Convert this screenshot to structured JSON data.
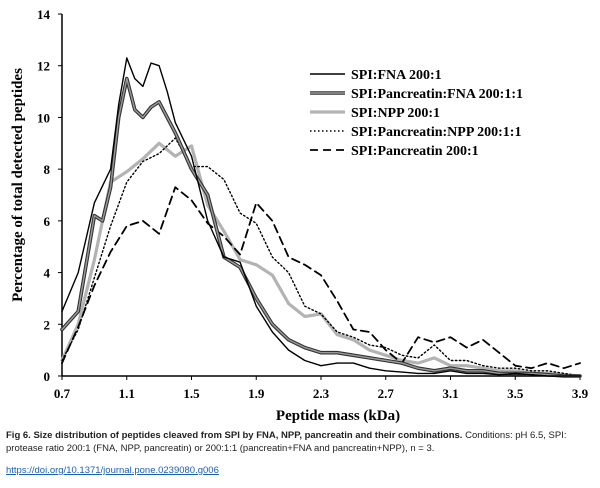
{
  "chart_data": {
    "type": "line",
    "title": "",
    "xlabel": "Peptide mass (kDa)",
    "ylabel": "Percentage of total detected peptides",
    "xlim": [
      0.7,
      3.9
    ],
    "ylim": [
      0,
      14
    ],
    "x_ticks": [
      "0.7",
      "1.1",
      "1.5",
      "1.9",
      "2.3",
      "2.7",
      "3.1",
      "3.5",
      "3.9"
    ],
    "y_ticks": [
      "0",
      "2",
      "4",
      "6",
      "8",
      "10",
      "12",
      "14"
    ],
    "legend_position": "top-right",
    "series": [
      {
        "name": "SPI:FNA 200:1",
        "style": "solid-black",
        "x": [
          0.7,
          0.8,
          0.9,
          1.0,
          1.05,
          1.1,
          1.15,
          1.2,
          1.25,
          1.3,
          1.35,
          1.4,
          1.5,
          1.6,
          1.7,
          1.8,
          1.9,
          2.0,
          2.1,
          2.2,
          2.3,
          2.4,
          2.5,
          2.6,
          2.7,
          2.8,
          2.9,
          3.0,
          3.1,
          3.2,
          3.3,
          3.4,
          3.5,
          3.6,
          3.7,
          3.8,
          3.9
        ],
        "y": [
          2.5,
          4.0,
          6.7,
          8.0,
          10.5,
          12.3,
          11.5,
          11.2,
          12.1,
          12.0,
          11.0,
          9.8,
          8.5,
          6.0,
          4.6,
          4.4,
          2.7,
          1.7,
          1.0,
          0.6,
          0.4,
          0.5,
          0.5,
          0.3,
          0.2,
          0.15,
          0.1,
          0.1,
          0.2,
          0.1,
          0.1,
          0.05,
          0.1,
          0.05,
          0.0,
          0.0,
          0.0
        ]
      },
      {
        "name": "SPI:Pancreatin:FNA 200:1:1",
        "style": "double-gray",
        "x": [
          0.7,
          0.8,
          0.9,
          0.95,
          1.0,
          1.05,
          1.1,
          1.15,
          1.2,
          1.25,
          1.3,
          1.35,
          1.4,
          1.5,
          1.6,
          1.7,
          1.8,
          1.9,
          2.0,
          2.1,
          2.2,
          2.3,
          2.4,
          2.5,
          2.6,
          2.7,
          2.8,
          2.9,
          3.0,
          3.1,
          3.2,
          3.3,
          3.4,
          3.5,
          3.6,
          3.7,
          3.8,
          3.9
        ],
        "y": [
          1.8,
          2.5,
          6.2,
          6.0,
          7.3,
          10.0,
          11.5,
          10.3,
          10.0,
          10.4,
          10.6,
          10.0,
          9.4,
          8.0,
          7.0,
          4.6,
          4.2,
          3.0,
          2.0,
          1.4,
          1.1,
          0.9,
          0.9,
          0.8,
          0.7,
          0.6,
          0.5,
          0.3,
          0.2,
          0.3,
          0.2,
          0.2,
          0.1,
          0.1,
          0.1,
          0.05,
          0.0,
          0.0
        ]
      },
      {
        "name": "SPI:NPP 200:1",
        "style": "solid-lightgray",
        "x": [
          0.7,
          0.8,
          0.9,
          1.0,
          1.1,
          1.2,
          1.3,
          1.4,
          1.5,
          1.6,
          1.7,
          1.8,
          1.9,
          2.0,
          2.1,
          2.2,
          2.3,
          2.4,
          2.5,
          2.6,
          2.7,
          2.8,
          2.9,
          3.0,
          3.1,
          3.2,
          3.3,
          3.4,
          3.5,
          3.6,
          3.7,
          3.8,
          3.9
        ],
        "y": [
          0.6,
          2.0,
          4.5,
          7.5,
          7.9,
          8.4,
          9.0,
          8.5,
          8.9,
          6.6,
          5.6,
          4.5,
          4.3,
          3.9,
          2.8,
          2.3,
          2.4,
          1.6,
          1.4,
          1.0,
          0.8,
          0.6,
          0.5,
          0.7,
          0.4,
          0.4,
          0.3,
          0.2,
          0.2,
          0.1,
          0.1,
          0.05,
          0.0
        ]
      },
      {
        "name": "SPI:Pancreatin:NPP 200:1:1",
        "style": "dotted",
        "x": [
          0.7,
          0.8,
          0.9,
          1.0,
          1.1,
          1.2,
          1.3,
          1.4,
          1.5,
          1.6,
          1.7,
          1.8,
          1.9,
          2.0,
          2.1,
          2.2,
          2.3,
          2.4,
          2.5,
          2.6,
          2.7,
          2.8,
          2.9,
          3.0,
          3.1,
          3.2,
          3.3,
          3.4,
          3.5,
          3.6,
          3.7,
          3.8,
          3.9
        ],
        "y": [
          0.6,
          1.8,
          3.8,
          5.8,
          7.5,
          8.3,
          8.6,
          9.2,
          8.1,
          8.1,
          7.6,
          6.3,
          5.9,
          4.6,
          4.0,
          2.7,
          2.4,
          1.7,
          1.5,
          1.2,
          1.1,
          0.8,
          0.7,
          1.2,
          0.6,
          0.6,
          0.4,
          0.3,
          0.3,
          0.2,
          0.2,
          0.1,
          0.0
        ]
      },
      {
        "name": "SPI:Pancreatin 200:1",
        "style": "dashed",
        "x": [
          0.7,
          0.8,
          0.9,
          1.0,
          1.1,
          1.2,
          1.3,
          1.4,
          1.5,
          1.6,
          1.7,
          1.8,
          1.9,
          2.0,
          2.1,
          2.2,
          2.3,
          2.4,
          2.5,
          2.6,
          2.7,
          2.8,
          2.9,
          3.0,
          3.1,
          3.2,
          3.3,
          3.4,
          3.5,
          3.6,
          3.7,
          3.8,
          3.9
        ],
        "y": [
          0.5,
          1.9,
          3.5,
          4.8,
          5.8,
          6.0,
          5.5,
          7.3,
          6.8,
          5.9,
          5.4,
          4.7,
          6.7,
          6.0,
          4.6,
          4.3,
          3.9,
          2.9,
          1.8,
          1.7,
          1.0,
          0.5,
          1.5,
          1.3,
          1.5,
          1.1,
          1.4,
          0.9,
          0.4,
          0.3,
          0.5,
          0.3,
          0.5
        ]
      }
    ]
  },
  "caption": {
    "label": "Fig 6. Size distribution of peptides cleaved from SPI by FNA, NPP, pancreatin and their combinations.",
    "text": " Conditions: pH 6.5, SPI: protease ratio 200:1 (FNA, NPP, pancreatin) or 200:1:1 (pancreatin+FNA and pancreatin+NPP), n = 3."
  },
  "doi": "https://doi.org/10.1371/journal.pone.0239080.g006"
}
